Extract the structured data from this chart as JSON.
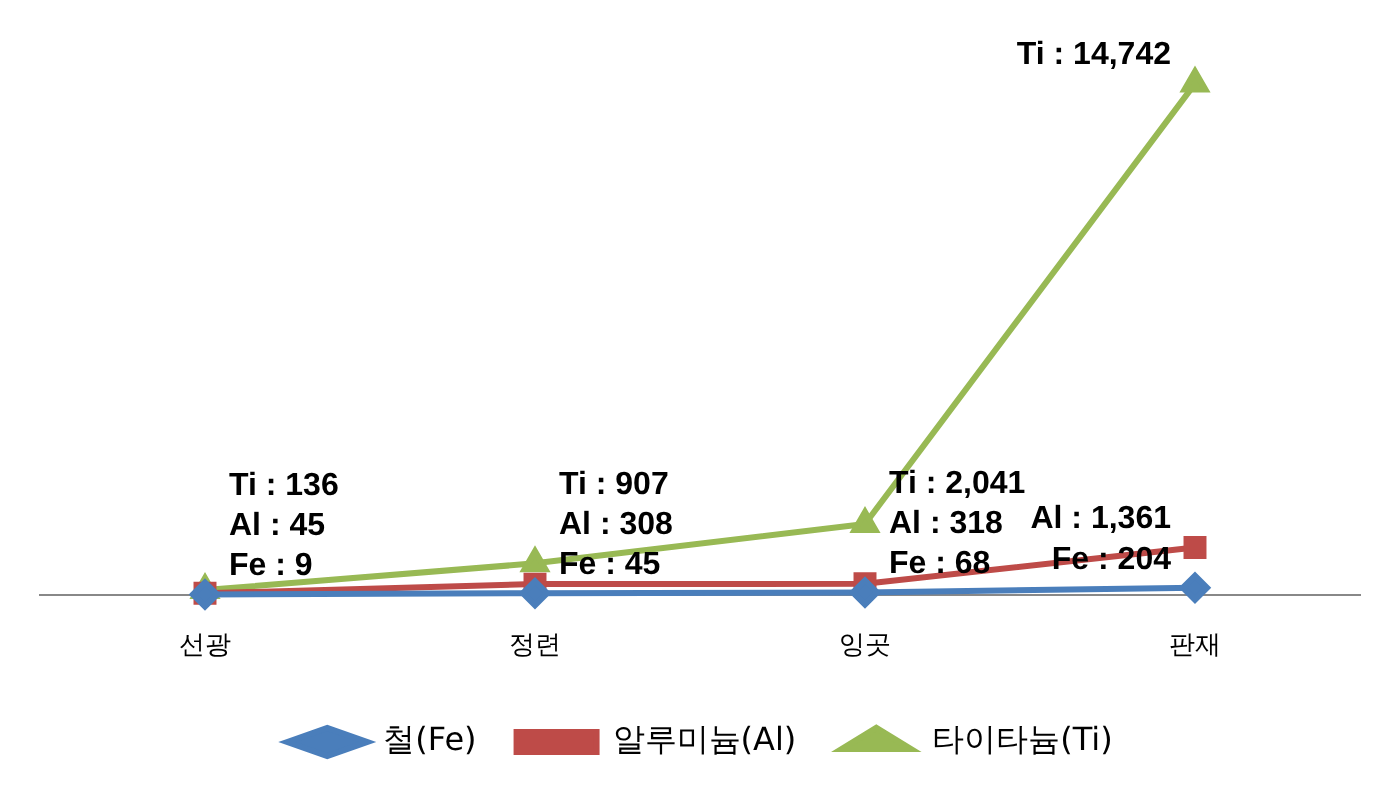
{
  "chart_data": {
    "type": "line",
    "categories": [
      "선광",
      "정련",
      "잉곳",
      "판재"
    ],
    "series": [
      {
        "name": "철(Fe)",
        "color": "#4a7ebb",
        "marker": "diamond",
        "values": [
          9,
          45,
          68,
          204
        ],
        "value_labels": [
          "Fe : 9",
          "Fe : 45",
          "Fe : 68",
          "Fe : 204"
        ]
      },
      {
        "name": "알루미늄(Al)",
        "color": "#be4b48",
        "marker": "square",
        "values": [
          45,
          308,
          318,
          1361
        ],
        "value_labels": [
          "Al : 45",
          "Al : 308",
          "Al : 318",
          "Al : 1,361"
        ]
      },
      {
        "name": "타이타늄(Ti)",
        "color": "#98b954",
        "marker": "triangle",
        "values": [
          136,
          907,
          2041,
          14742
        ],
        "value_labels": [
          "Ti : 136",
          "Ti : 907",
          "Ti : 2,041",
          "Ti : 14,742"
        ]
      }
    ],
    "grid": false,
    "legend": "bottom",
    "tick_labels": "x"
  }
}
